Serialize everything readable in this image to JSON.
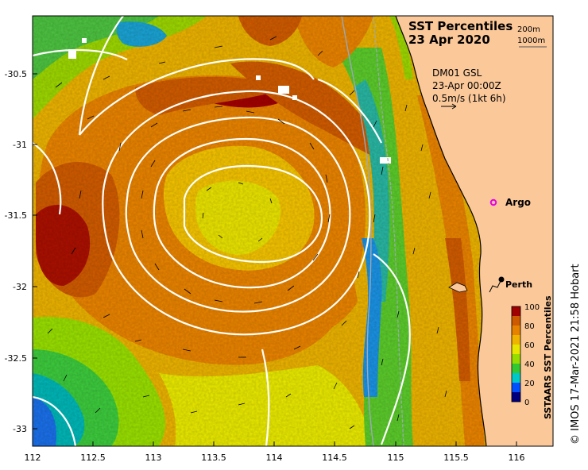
{
  "title": "SST Percentiles",
  "date": "23 Apr 2020",
  "bathymetry_legend": {
    "contour_1": "200m",
    "contour_2": "1000m"
  },
  "current_info": {
    "line_1": "DM01 GSL",
    "line_2": "23-Apr 00:00Z",
    "line_3": "0.5m/s (1kt 6h)"
  },
  "markers": {
    "argo": {
      "label": "Argo",
      "color": "#e600e6"
    },
    "perth": {
      "label": "Perth"
    }
  },
  "x_ticks": [
    "112",
    "112.5",
    "113",
    "113.5",
    "114",
    "114.5",
    "115",
    "115.5",
    "116"
  ],
  "y_ticks": [
    "-30.5",
    "-31",
    "-31.5",
    "-32",
    "-32.5",
    "-33"
  ],
  "colorbar": {
    "title": "SSTAARS SST Percentiles",
    "ticks": [
      "100",
      "80",
      "60",
      "40",
      "20",
      "0"
    ],
    "colors": [
      "#00007f",
      "#0050ff",
      "#00c8c8",
      "#32c832",
      "#96dc00",
      "#e6e600",
      "#f0b400",
      "#e68200",
      "#cd5a00",
      "#a00000"
    ]
  },
  "credit": "© IMOS 17-Mar-2021 21:58 Hobart"
}
